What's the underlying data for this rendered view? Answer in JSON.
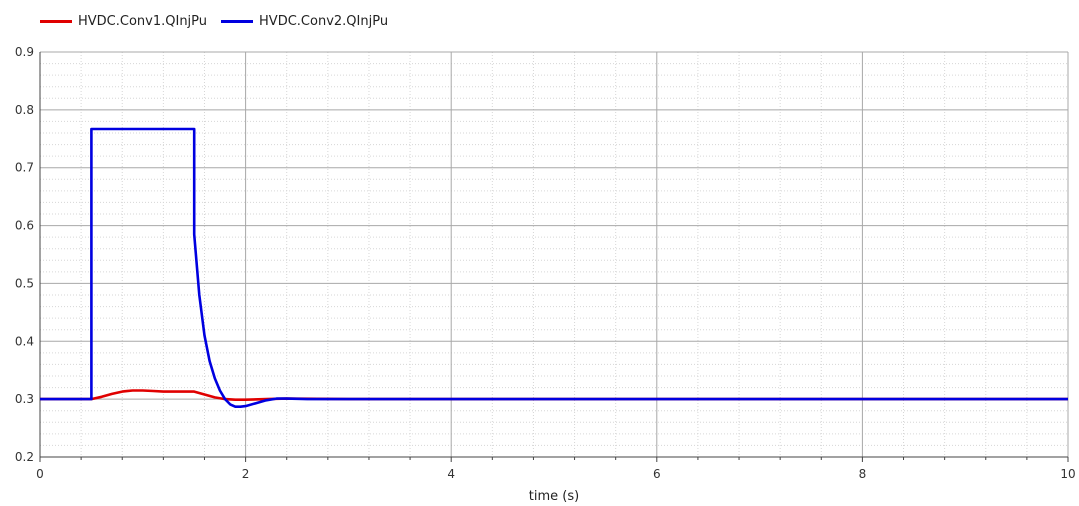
{
  "colors": {
    "background": "#ffffff",
    "grid_major": "#a8a8a8",
    "grid_minor": "#d6d6d6",
    "axis": "#444444"
  },
  "chart_data": {
    "type": "line",
    "title": "",
    "xlabel": "time (s)",
    "ylabel": "",
    "xlim": [
      0,
      10
    ],
    "ylim": [
      0.2,
      0.9
    ],
    "xticks": [
      0,
      2,
      4,
      6,
      8,
      10
    ],
    "yticks": [
      0.2,
      0.3,
      0.4,
      0.5,
      0.6,
      0.7,
      0.8,
      0.9
    ],
    "xtick_labels": [
      "0",
      "2",
      "4",
      "6",
      "8",
      "10"
    ],
    "ytick_labels": [
      "0.2",
      "0.3",
      "0.4",
      "0.5",
      "0.6",
      "0.7",
      "0.8",
      "0.9"
    ],
    "grid": true,
    "legend_position": "top-left",
    "series": [
      {
        "name": "HVDC.Conv1.QInjPu",
        "color": "#e00000",
        "x": [
          0,
          0.5,
          0.6,
          0.7,
          0.8,
          0.9,
          1.0,
          1.1,
          1.2,
          1.3,
          1.4,
          1.5,
          1.6,
          1.7,
          1.8,
          1.9,
          2.0,
          2.2,
          2.4,
          3.0,
          5.0,
          8.0,
          10.0
        ],
        "y": [
          0.3,
          0.3,
          0.304,
          0.309,
          0.313,
          0.315,
          0.315,
          0.314,
          0.313,
          0.313,
          0.313,
          0.313,
          0.308,
          0.303,
          0.3,
          0.299,
          0.299,
          0.3,
          0.301,
          0.3,
          0.3,
          0.3,
          0.3
        ]
      },
      {
        "name": "HVDC.Conv2.QInjPu",
        "color": "#0000e0",
        "x": [
          0,
          0.5,
          0.5,
          1.5,
          1.5,
          1.55,
          1.6,
          1.65,
          1.7,
          1.75,
          1.8,
          1.85,
          1.9,
          1.95,
          2.0,
          2.1,
          2.2,
          2.3,
          2.4,
          2.6,
          3.0,
          5.0,
          8.0,
          10.0
        ],
        "y": [
          0.3,
          0.3,
          0.767,
          0.767,
          0.585,
          0.48,
          0.41,
          0.366,
          0.336,
          0.315,
          0.3,
          0.291,
          0.287,
          0.287,
          0.288,
          0.293,
          0.298,
          0.301,
          0.301,
          0.3,
          0.3,
          0.3,
          0.3,
          0.3
        ]
      }
    ]
  }
}
